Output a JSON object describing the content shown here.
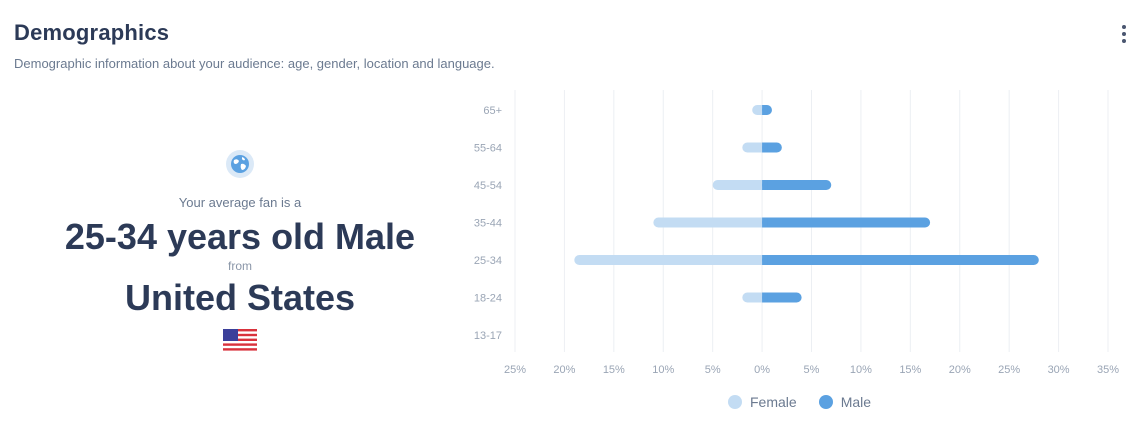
{
  "header": {
    "title": "Demographics",
    "subtitle": "Demographic information about your audience: age, gender, location and language."
  },
  "summary": {
    "intro": "Your average fan is a",
    "age_gender": "25-34 years old Male",
    "from": "from",
    "country": "United States"
  },
  "icons": {
    "globe": "globe-icon",
    "flag": "us-flag-icon",
    "menu": "more-vertical-icon"
  },
  "colors": {
    "female": "#c3dcf3",
    "male": "#5ba1e1"
  },
  "chart_data": {
    "type": "bar",
    "orientation": "horizontal",
    "categories": [
      "65+",
      "55-64",
      "45-54",
      "35-44",
      "25-34",
      "18-24",
      "13-17"
    ],
    "series": [
      {
        "name": "Female",
        "values": [
          -1,
          -2,
          -5,
          -11,
          -19,
          -2,
          0
        ]
      },
      {
        "name": "Male",
        "values": [
          1,
          2,
          7,
          17,
          28,
          4,
          0
        ]
      }
    ],
    "xlim": [
      -25,
      35
    ],
    "x_ticks": [
      "25%",
      "20%",
      "15%",
      "10%",
      "5%",
      "0%",
      "5%",
      "10%",
      "15%",
      "20%",
      "25%",
      "30%",
      "35%"
    ],
    "grid": true,
    "legend": "bottom"
  }
}
